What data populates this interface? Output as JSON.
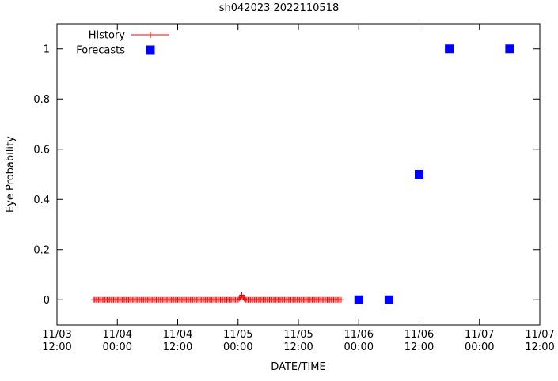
{
  "window": {
    "background": "#ffffff",
    "text_color": "#000000"
  },
  "chart_data": {
    "type": "line",
    "title": "sh042023 2022110518",
    "xlabel": "DATE/TIME",
    "ylabel": "Eye Probability",
    "xlim_hours": [
      0,
      96
    ],
    "ylim": [
      -0.1,
      1.1
    ],
    "grid": false,
    "x_ticks": [
      {
        "hours": 0,
        "date": "11/03",
        "time": "12:00"
      },
      {
        "hours": 12,
        "date": "11/04",
        "time": "00:00"
      },
      {
        "hours": 24,
        "date": "11/04",
        "time": "12:00"
      },
      {
        "hours": 36,
        "date": "11/05",
        "time": "00:00"
      },
      {
        "hours": 48,
        "date": "11/05",
        "time": "12:00"
      },
      {
        "hours": 60,
        "date": "11/06",
        "time": "00:00"
      },
      {
        "hours": 72,
        "date": "11/06",
        "time": "12:00"
      },
      {
        "hours": 84,
        "date": "11/07",
        "time": "00:00"
      },
      {
        "hours": 96,
        "date": "11/07",
        "time": "12:00"
      }
    ],
    "y_ticks": [
      {
        "value": 0,
        "label": "0"
      },
      {
        "value": 0.2,
        "label": "0.2"
      },
      {
        "value": 0.4,
        "label": "0.4"
      },
      {
        "value": 0.6,
        "label": "0.6"
      },
      {
        "value": 0.8,
        "label": "0.8"
      },
      {
        "value": 1,
        "label": "1"
      }
    ],
    "legend": {
      "position": "top-left",
      "entries": [
        {
          "label": "History",
          "color": "#ff0000",
          "marker": "plus-line"
        },
        {
          "label": "Forecasts",
          "color": "#0000ff",
          "marker": "square"
        }
      ]
    },
    "series": [
      {
        "name": "History",
        "style": "linespoints",
        "marker": "plus",
        "color": "#ff0000",
        "run": {
          "start_hours": 7.25,
          "end_hours": 56.5,
          "step_hours": 0.25,
          "base_y": 0
        },
        "bump_points": [
          {
            "hours": 36.25,
            "y": 0.004
          },
          {
            "hours": 36.5,
            "y": 0.01
          },
          {
            "hours": 36.75,
            "y": 0.018
          },
          {
            "hours": 37.0,
            "y": 0.01
          },
          {
            "hours": 37.25,
            "y": 0.004
          }
        ]
      },
      {
        "name": "Forecasts",
        "style": "points",
        "marker": "square",
        "color": "#0000ff",
        "points": [
          {
            "hours": 60,
            "y": 0
          },
          {
            "hours": 66,
            "y": 0
          },
          {
            "hours": 72,
            "y": 0.5
          },
          {
            "hours": 78,
            "y": 1
          },
          {
            "hours": 90,
            "y": 1
          }
        ]
      }
    ]
  }
}
